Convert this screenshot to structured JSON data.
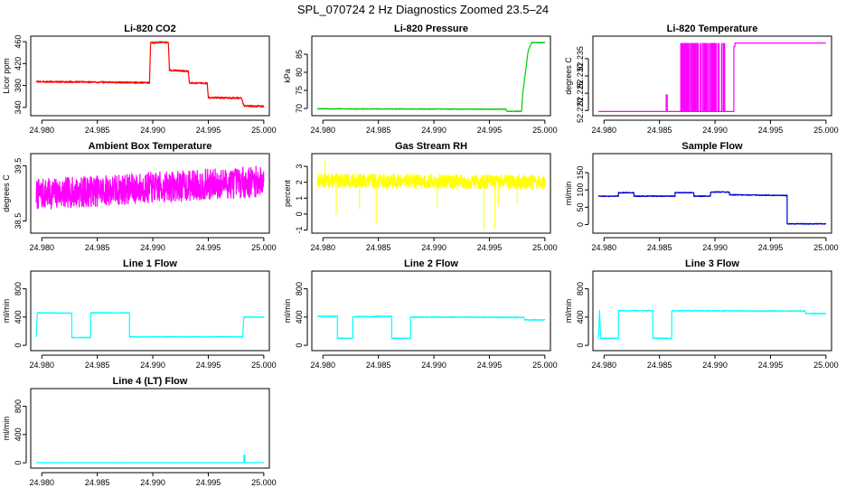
{
  "figure_title": "SPL_070724  2 Hz Diagnostics Zoomed 23.5–24",
  "chart_data": [
    {
      "type": "line",
      "title": "Li-820 CO2",
      "ylabel": "Licor ppm",
      "color": "#ff0000",
      "xlim": [
        24.979,
        25.0005
      ],
      "ylim": [
        325,
        470
      ],
      "xticks": [
        24.98,
        24.985,
        24.99,
        24.995,
        25.0
      ],
      "xtick_labels": [
        "24.980",
        "24.985",
        "24.990",
        "24.995",
        "25.000"
      ],
      "yticks": [
        340,
        380,
        420,
        460
      ],
      "ytick_labels": [
        "340",
        "380",
        "420",
        "460"
      ],
      "x": [
        24.9795,
        24.986,
        24.9897,
        24.9898,
        24.9914,
        24.9915,
        24.9932,
        24.9933,
        24.9949,
        24.995,
        24.998,
        24.9982,
        25.0
      ],
      "y": [
        387,
        386,
        385,
        458,
        459,
        408,
        406,
        385,
        384,
        358,
        357,
        343,
        342
      ],
      "noise": 1.5,
      "noise_seed": 3
    },
    {
      "type": "line",
      "title": "Li-820 Pressure",
      "ylabel": "kPa",
      "color": "#00cc00",
      "xlim": [
        24.979,
        25.0005
      ],
      "ylim": [
        68,
        90
      ],
      "xticks": [
        24.98,
        24.985,
        24.99,
        24.995,
        25.0
      ],
      "xtick_labels": [
        "24.980",
        "24.985",
        "24.990",
        "24.995",
        "25.000"
      ],
      "yticks": [
        70,
        75,
        80,
        85
      ],
      "ytick_labels": [
        "70",
        "75",
        "80",
        "85"
      ],
      "x": [
        24.9795,
        24.9965,
        24.9966,
        24.9979,
        24.998,
        24.9985,
        24.9988,
        25.0
      ],
      "y": [
        69.9,
        69.8,
        69.2,
        69.2,
        74,
        86,
        88.2,
        88.2
      ],
      "noise": 0.1,
      "noise_seed": 5
    },
    {
      "type": "line",
      "title": "Li-820 Temperature",
      "ylabel": "degrees C",
      "color": "#ff00ff",
      "xlim": [
        24.979,
        25.0005
      ],
      "ylim": [
        52.2185,
        52.2415
      ],
      "xticks": [
        24.98,
        24.985,
        24.99,
        24.995,
        25.0
      ],
      "xtick_labels": [
        "24.980",
        "24.985",
        "24.990",
        "24.995",
        "25.000"
      ],
      "yticks": [
        52.22,
        52.225,
        52.23,
        52.235
      ],
      "ytick_labels": [
        "52.220",
        "52.225",
        "52.230",
        "52.235"
      ],
      "x": [
        24.9795,
        24.9856,
        24.9856,
        24.9857,
        24.9857,
        24.9917,
        24.9917,
        24.9918,
        24.9918,
        25.0
      ],
      "y": [
        52.2197,
        52.2197,
        52.2245,
        52.2245,
        52.2197,
        52.2197,
        52.2385,
        52.2385,
        52.2395,
        52.2395
      ],
      "toggle": {
        "x_start": 24.9868,
        "x_end": 24.9909,
        "lo": 52.2197,
        "hi": 52.2395,
        "count": 90,
        "seed": 11
      }
    },
    {
      "type": "line",
      "title": "Ambient Box Temperature",
      "ylabel": "degrees C",
      "color": "#ff00ff",
      "xlim": [
        24.979,
        25.0005
      ],
      "ylim": [
        38.28,
        39.72
      ],
      "xticks": [
        24.98,
        24.985,
        24.99,
        24.995,
        25.0
      ],
      "xtick_labels": [
        "24.980",
        "24.985",
        "24.990",
        "24.995",
        "25.000"
      ],
      "yticks": [
        38.5,
        39.5
      ],
      "ytick_labels": [
        "38.5",
        "39.5"
      ],
      "x": [
        24.9795,
        25.0
      ],
      "y": [
        38.98,
        39.22
      ],
      "noise": 0.28,
      "noise_seed": 7
    },
    {
      "type": "line",
      "title": "Gas Stream RH",
      "ylabel": "percent",
      "color": "#ffff00",
      "xlim": [
        24.979,
        25.0005
      ],
      "ylim": [
        -1.2,
        3.8
      ],
      "xticks": [
        24.98,
        24.985,
        24.99,
        24.995,
        25.0
      ],
      "xtick_labels": [
        "24.980",
        "24.985",
        "24.990",
        "24.995",
        "25.000"
      ],
      "yticks": [
        -1,
        0,
        1,
        2,
        3
      ],
      "ytick_labels": [
        "-1",
        "0",
        "1",
        "2",
        "3"
      ],
      "x": [
        24.9795,
        25.0
      ],
      "y": [
        2.1,
        2.0
      ],
      "noise": 0.45,
      "noise_seed": 13,
      "spikes": [
        [
          24.9812,
          0.0
        ],
        [
          24.9833,
          0.3
        ],
        [
          24.9848,
          -0.6
        ],
        [
          24.9903,
          0.4
        ],
        [
          24.9945,
          -1.0
        ],
        [
          24.9955,
          -0.9
        ],
        [
          24.9958,
          0.5
        ],
        [
          24.9975,
          0.6
        ],
        [
          24.9802,
          3.4
        ]
      ]
    },
    {
      "type": "line",
      "title": "Sample Flow",
      "ylabel": "ml/min",
      "color": "#0000cc",
      "xlim": [
        24.979,
        25.0005
      ],
      "ylim": [
        -25,
        205
      ],
      "xticks": [
        24.98,
        24.985,
        24.99,
        24.995,
        25.0
      ],
      "xtick_labels": [
        "24.980",
        "24.985",
        "24.990",
        "24.995",
        "25.000"
      ],
      "yticks": [
        0,
        50,
        100,
        150
      ],
      "ytick_labels": [
        "0",
        "50",
        "100",
        "150"
      ],
      "x": [
        24.9795,
        24.9813,
        24.9813,
        24.9827,
        24.9827,
        24.9864,
        24.9864,
        24.9881,
        24.9881,
        24.9896,
        24.9896,
        24.9913,
        24.9913,
        24.9965,
        24.9965,
        25.0
      ],
      "y": [
        82,
        82,
        92,
        92,
        82,
        82,
        92,
        92,
        82,
        82,
        94,
        94,
        86,
        84,
        2,
        2
      ],
      "noise": 1.2,
      "noise_seed": 17
    },
    {
      "type": "line",
      "title": "Line 1 Flow",
      "ylabel": "ml/min",
      "color": "#00ffff",
      "xlim": [
        24.979,
        25.0005
      ],
      "ylim": [
        -75,
        1050
      ],
      "xticks": [
        24.98,
        24.985,
        24.99,
        24.995,
        25.0
      ],
      "xtick_labels": [
        "24.980",
        "24.985",
        "24.990",
        "24.995",
        "25.000"
      ],
      "yticks": [
        0,
        400,
        800
      ],
      "ytick_labels": [
        "0",
        "400",
        "800"
      ],
      "x": [
        24.9795,
        24.9796,
        24.9827,
        24.9827,
        24.9844,
        24.9844,
        24.9879,
        24.9879,
        24.9981,
        24.9982,
        25.0
      ],
      "y": [
        120,
        460,
        455,
        110,
        110,
        460,
        460,
        120,
        120,
        400,
        400
      ],
      "noise": 5,
      "noise_seed": 19
    },
    {
      "type": "line",
      "title": "Line 2 Flow",
      "ylabel": "ml/min",
      "color": "#00ffff",
      "xlim": [
        24.979,
        25.0005
      ],
      "ylim": [
        -75,
        1050
      ],
      "xticks": [
        24.98,
        24.985,
        24.99,
        24.995,
        25.0
      ],
      "xtick_labels": [
        "24.980",
        "24.985",
        "24.990",
        "24.995",
        "25.000"
      ],
      "yticks": [
        0,
        400,
        800
      ],
      "ytick_labels": [
        "0",
        "400",
        "800"
      ],
      "x": [
        24.9795,
        24.9813,
        24.9813,
        24.9827,
        24.9827,
        24.9862,
        24.9862,
        24.9879,
        24.9879,
        24.9981,
        24.9982,
        25.0
      ],
      "y": [
        410,
        410,
        100,
        100,
        405,
        410,
        100,
        100,
        400,
        395,
        360,
        360
      ],
      "noise": 6,
      "noise_seed": 23
    },
    {
      "type": "line",
      "title": "Line 3 Flow",
      "ylabel": "ml/min",
      "color": "#00ffff",
      "xlim": [
        24.979,
        25.0005
      ],
      "ylim": [
        -75,
        1050
      ],
      "xticks": [
        24.98,
        24.985,
        24.99,
        24.995,
        25.0
      ],
      "xtick_labels": [
        "24.980",
        "24.985",
        "24.990",
        "24.995",
        "25.000"
      ],
      "yticks": [
        0,
        400,
        800
      ],
      "ytick_labels": [
        "0",
        "400",
        "800"
      ],
      "x": [
        24.9795,
        24.9796,
        24.9797,
        24.9813,
        24.9813,
        24.9844,
        24.9844,
        24.9861,
        24.9861,
        24.9981,
        24.9982,
        25.0
      ],
      "y": [
        100,
        490,
        100,
        100,
        490,
        490,
        100,
        100,
        490,
        485,
        450,
        450
      ],
      "noise": 6,
      "noise_seed": 29
    },
    {
      "type": "line",
      "title": "Line 4 (LT) Flow",
      "ylabel": "ml/min",
      "color": "#00ffff",
      "xlim": [
        24.979,
        25.0005
      ],
      "ylim": [
        -75,
        1050
      ],
      "xticks": [
        24.98,
        24.985,
        24.99,
        24.995,
        25.0
      ],
      "xtick_labels": [
        "24.980",
        "24.985",
        "24.990",
        "24.995",
        "25.000"
      ],
      "yticks": [
        0,
        400,
        800
      ],
      "ytick_labels": [
        "0",
        "400",
        "800"
      ],
      "x": [
        24.9795,
        24.9982,
        24.9982,
        24.9983,
        24.9983,
        25.0
      ],
      "y": [
        2,
        2,
        110,
        110,
        2,
        2
      ],
      "noise": 1.5,
      "noise_seed": 31
    }
  ]
}
